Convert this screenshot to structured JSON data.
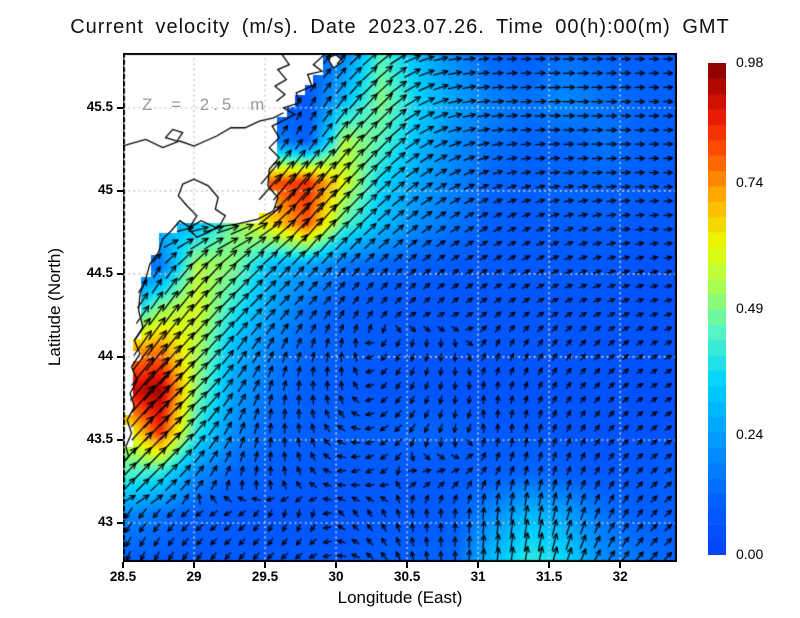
{
  "title": "Current velocity (m/s). Date 2023.07.26. Time 00(h):00(m) GMT",
  "colors": {
    "sea_min": "#0541f8",
    "sea_max": "#820000",
    "land": "#ffffff",
    "coastline": "#000000",
    "arrows": "#000000",
    "gridlines": "#cccccc"
  },
  "chart_data": {
    "type": "heatmap",
    "subtype": "vector-field-map",
    "title": "Current velocity (m/s). Date 2023.07.26. Time 00(h):00(m) GMT",
    "annotation": "Z = 2.5 m",
    "units": "m/s",
    "xlabel": "Longitude (East)",
    "ylabel": "Latitude (North)",
    "xlim": [
      28.5,
      32.4
    ],
    "ylim": [
      42.765,
      45.83
    ],
    "xticks": [
      28.5,
      29,
      29.5,
      30,
      30.5,
      31,
      31.5,
      32
    ],
    "yticks": [
      43,
      43.5,
      44,
      44.5,
      45,
      45.5
    ],
    "grid_on": true,
    "colorbar": {
      "position": "right",
      "vmin": 0.0,
      "vmax": 0.98,
      "segments": 32,
      "tick_labels": [
        "0.98",
        "0.74",
        "0.49",
        "0.24",
        "0.00"
      ],
      "tick_values": [
        0.98,
        0.74,
        0.49,
        0.24,
        0.0
      ],
      "colormap_stops": [
        [
          0.0,
          "#0541f8"
        ],
        [
          0.12,
          "#0064ff"
        ],
        [
          0.25,
          "#00a0ff"
        ],
        [
          0.35,
          "#00d2ff"
        ],
        [
          0.45,
          "#50f5c8"
        ],
        [
          0.55,
          "#aaff50"
        ],
        [
          0.63,
          "#ebfa00"
        ],
        [
          0.72,
          "#ffb400"
        ],
        [
          0.82,
          "#ff5000"
        ],
        [
          0.9,
          "#e61400"
        ],
        [
          1.0,
          "#820000"
        ]
      ]
    },
    "field_grid": {
      "lons": [
        28.5,
        28.76,
        29.02,
        29.28,
        29.54,
        29.8,
        30.06,
        30.32,
        30.58,
        30.84,
        31.1,
        31.36,
        31.62,
        31.88,
        32.14,
        32.4
      ],
      "lats": [
        45.8,
        45.55,
        45.3,
        45.05,
        44.8,
        44.55,
        44.3,
        44.05,
        43.8,
        43.55,
        43.3,
        43.05,
        42.8
      ],
      "speed": [
        [
          0,
          0,
          0,
          0,
          0.1,
          0.1,
          0.2,
          0.45,
          0.3,
          0.2,
          0.12,
          0.1,
          0.15,
          0.12,
          0.1,
          0.1
        ],
        [
          0,
          0,
          0,
          0,
          0.1,
          0.08,
          0.3,
          0.5,
          0.35,
          0.25,
          0.18,
          0.15,
          0.2,
          0.15,
          0.12,
          0.1
        ],
        [
          0,
          0,
          0,
          0,
          0.2,
          0.1,
          0.55,
          0.45,
          0.3,
          0.2,
          0.15,
          0.12,
          0.12,
          0.15,
          0.12,
          0.1
        ],
        [
          0,
          0,
          0,
          0.5,
          0.8,
          0.85,
          0.6,
          0.35,
          0.25,
          0.18,
          0.12,
          0.1,
          0.12,
          0.12,
          0.1,
          0.08
        ],
        [
          0,
          0.3,
          0.3,
          0.5,
          0.65,
          0.8,
          0.45,
          0.3,
          0.2,
          0.15,
          0.1,
          0.08,
          0.1,
          0.1,
          0.08,
          0.08
        ],
        [
          0.15,
          0.15,
          0.55,
          0.5,
          0.3,
          0.25,
          0.15,
          0.12,
          0.1,
          0.08,
          0.08,
          0.08,
          0.08,
          0.08,
          0.06,
          0.06
        ],
        [
          0.25,
          0.5,
          0.6,
          0.4,
          0.25,
          0.15,
          0.1,
          0.08,
          0.07,
          0.07,
          0.07,
          0.07,
          0.07,
          0.07,
          0.06,
          0.06
        ],
        [
          0.7,
          0.75,
          0.55,
          0.3,
          0.18,
          0.12,
          0.1,
          0.08,
          0.07,
          0.07,
          0.07,
          0.07,
          0.07,
          0.06,
          0.06,
          0.06
        ],
        [
          0.9,
          0.95,
          0.5,
          0.25,
          0.15,
          0.1,
          0.08,
          0.07,
          0.07,
          0.06,
          0.06,
          0.06,
          0.06,
          0.06,
          0.05,
          0.05
        ],
        [
          0.55,
          0.85,
          0.4,
          0.2,
          0.12,
          0.1,
          0.1,
          0.1,
          0.12,
          0.1,
          0.08,
          0.08,
          0.07,
          0.06,
          0.06,
          0.06
        ],
        [
          0.45,
          0.4,
          0.2,
          0.12,
          0.1,
          0.08,
          0.08,
          0.08,
          0.08,
          0.08,
          0.1,
          0.12,
          0.1,
          0.08,
          0.08,
          0.1
        ],
        [
          0.2,
          0.15,
          0.1,
          0.08,
          0.07,
          0.07,
          0.07,
          0.08,
          0.08,
          0.1,
          0.2,
          0.3,
          0.25,
          0.15,
          0.1,
          0.1
        ],
        [
          0.12,
          0.1,
          0.08,
          0.08,
          0.08,
          0.08,
          0.08,
          0.1,
          0.1,
          0.12,
          0.3,
          0.4,
          0.35,
          0.2,
          0.15,
          0.12
        ]
      ],
      "dir_deg": [
        [
          50,
          50,
          50,
          50,
          55,
          55,
          48,
          40,
          20,
          8,
          5,
          3,
          2,
          2,
          2,
          2
        ],
        [
          50,
          50,
          50,
          50,
          60,
          65,
          52,
          45,
          28,
          12,
          5,
          3,
          0,
          0,
          0,
          0
        ],
        [
          50,
          50,
          50,
          50,
          55,
          58,
          52,
          46,
          32,
          20,
          10,
          5,
          2,
          0,
          0,
          0
        ],
        [
          50,
          50,
          50,
          50,
          50,
          52,
          48,
          42,
          35,
          28,
          20,
          12,
          8,
          4,
          2,
          0
        ],
        [
          10,
          10,
          5,
          15,
          35,
          50,
          46,
          42,
          36,
          32,
          28,
          22,
          18,
          12,
          8,
          5
        ],
        [
          60,
          60,
          48,
          45,
          44,
          46,
          46,
          42,
          38,
          34,
          30,
          28,
          24,
          18,
          14,
          10
        ],
        [
          55,
          55,
          50,
          46,
          46,
          48,
          55,
          50,
          42,
          38,
          34,
          32,
          28,
          24,
          18,
          14
        ],
        [
          58,
          52,
          46,
          52,
          62,
          75,
          85,
          230,
          255,
          270,
          70,
          60,
          55,
          45,
          35,
          25
        ],
        [
          52,
          48,
          45,
          55,
          75,
          90,
          100,
          225,
          250,
          265,
          85,
          70,
          55,
          45,
          35,
          28
        ],
        [
          50,
          46,
          50,
          65,
          85,
          100,
          150,
          210,
          240,
          260,
          90,
          80,
          65,
          50,
          40,
          32
        ],
        [
          48,
          44,
          50,
          70,
          90,
          120,
          190,
          215,
          15,
          30,
          60,
          75,
          70,
          55,
          45,
          35
        ],
        [
          235,
          228,
          220,
          210,
          250,
          265,
          130,
          115,
          95,
          88,
          85,
          80,
          75,
          65,
          52,
          42
        ],
        [
          250,
          240,
          235,
          230,
          225,
          215,
          170,
          130,
          100,
          90,
          85,
          80,
          72,
          60,
          50,
          45
        ]
      ]
    },
    "coastline": {
      "land_polygon": [
        [
          28.5,
          45.83
        ],
        [
          29.93,
          45.83
        ],
        [
          29.84,
          45.76
        ],
        [
          29.9,
          45.72
        ],
        [
          29.8,
          45.7
        ],
        [
          29.83,
          45.63
        ],
        [
          29.72,
          45.59
        ],
        [
          29.74,
          45.53
        ],
        [
          29.63,
          45.5
        ],
        [
          29.71,
          45.46
        ],
        [
          29.62,
          45.42
        ],
        [
          29.55,
          45.39
        ],
        [
          29.6,
          45.32
        ],
        [
          29.53,
          45.26
        ],
        [
          29.6,
          45.2
        ],
        [
          29.53,
          45.13
        ],
        [
          29.52,
          45.03
        ],
        [
          29.59,
          44.96
        ],
        [
          29.56,
          44.88
        ],
        [
          29.45,
          44.83
        ],
        [
          29.3,
          44.8
        ],
        [
          29.15,
          44.78
        ],
        [
          29.05,
          44.82
        ],
        [
          28.97,
          44.78
        ],
        [
          28.9,
          44.82
        ],
        [
          28.84,
          44.76
        ],
        [
          28.78,
          44.71
        ],
        [
          28.75,
          44.63
        ],
        [
          28.69,
          44.56
        ],
        [
          28.66,
          44.47
        ],
        [
          28.62,
          44.38
        ],
        [
          28.61,
          44.28
        ],
        [
          28.64,
          44.18
        ],
        [
          28.58,
          44.1
        ],
        [
          28.62,
          44.02
        ],
        [
          28.56,
          43.94
        ],
        [
          28.6,
          43.86
        ],
        [
          28.55,
          43.78
        ],
        [
          28.58,
          43.7
        ],
        [
          28.53,
          43.62
        ],
        [
          28.56,
          43.54
        ],
        [
          28.52,
          43.46
        ],
        [
          28.54,
          43.4
        ],
        [
          28.5,
          43.36
        ]
      ],
      "inner_contours_open": [
        [
          [
            28.5,
            45.27
          ],
          [
            28.66,
            45.31
          ],
          [
            28.78,
            45.26
          ],
          [
            28.9,
            45.3
          ],
          [
            29.0,
            45.27
          ],
          [
            29.08,
            45.3
          ],
          [
            29.16,
            45.33
          ],
          [
            29.26,
            45.38
          ],
          [
            29.36,
            45.38
          ],
          [
            29.46,
            45.42
          ],
          [
            29.56,
            45.44
          ],
          [
            29.63,
            45.47
          ]
        ],
        [
          [
            29.62,
            45.82
          ],
          [
            29.67,
            45.76
          ],
          [
            29.59,
            45.73
          ],
          [
            29.65,
            45.67
          ],
          [
            29.57,
            45.63
          ],
          [
            29.64,
            45.58
          ],
          [
            29.58,
            45.54
          ]
        ]
      ],
      "inner_contours_closed": [
        [
          [
            28.8,
            45.32
          ],
          [
            28.85,
            45.37
          ],
          [
            28.92,
            45.35
          ],
          [
            28.88,
            45.3
          ]
        ],
        [
          [
            28.92,
            45.04
          ],
          [
            29.0,
            45.07
          ],
          [
            29.1,
            45.03
          ],
          [
            29.17,
            44.96
          ],
          [
            29.15,
            44.89
          ],
          [
            29.22,
            44.85
          ],
          [
            29.18,
            44.79
          ],
          [
            29.1,
            44.75
          ],
          [
            29.02,
            44.72
          ],
          [
            28.96,
            44.77
          ],
          [
            29.02,
            44.85
          ],
          [
            28.95,
            44.91
          ],
          [
            28.89,
            44.97
          ]
        ]
      ],
      "islands": [
        [
          [
            29.94,
            45.8
          ],
          [
            30.0,
            45.82
          ],
          [
            30.05,
            45.78
          ],
          [
            29.98,
            45.74
          ]
        ]
      ]
    }
  }
}
